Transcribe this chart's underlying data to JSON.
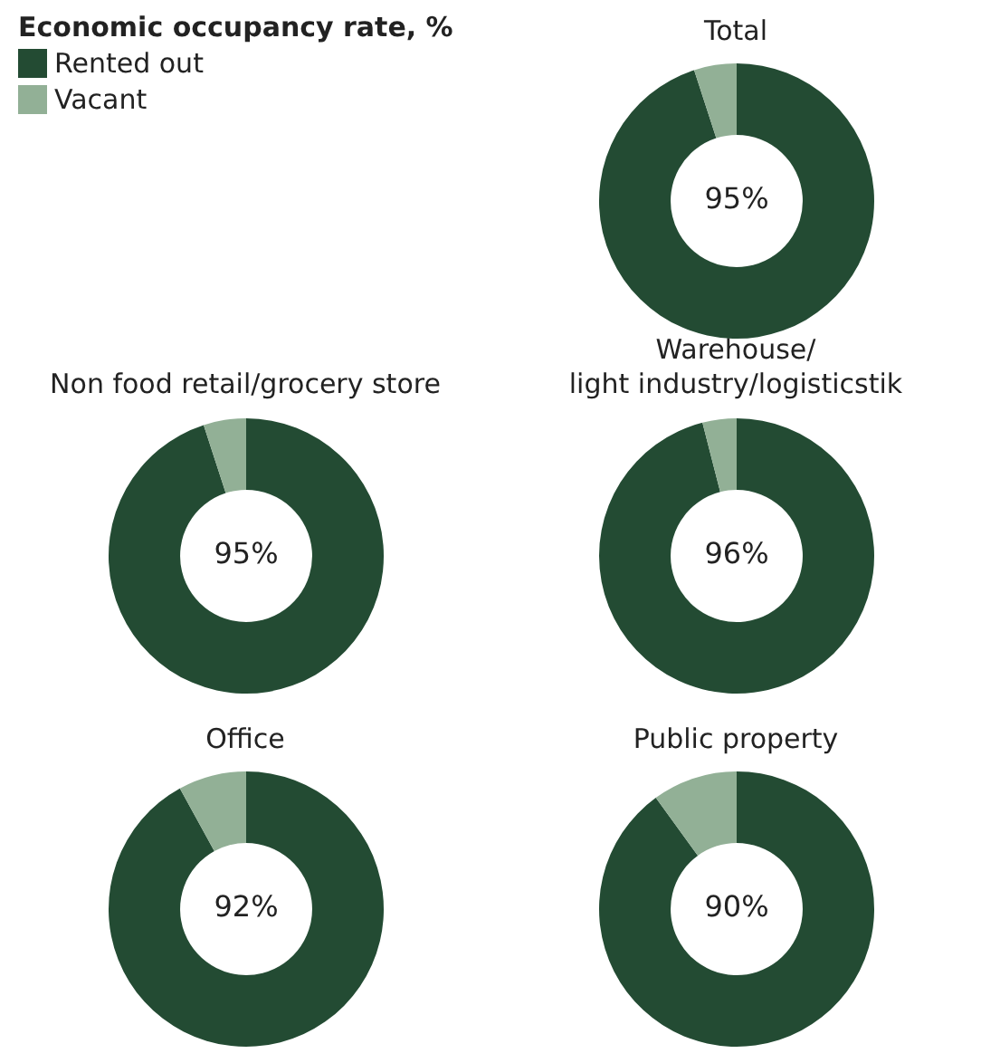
{
  "chart_data": [
    {
      "type": "donut",
      "title": "Total",
      "legend_title": "Economic occupancy rate, %",
      "legend": "left",
      "categories": [
        "Rented out",
        "Vacant"
      ],
      "values": [
        95,
        5
      ],
      "colors": [
        "#234b33",
        "#92b096"
      ],
      "annotations": [
        "95%"
      ]
    },
    {
      "type": "donut",
      "title": "Non food retail/grocery store",
      "categories": [
        null,
        null
      ],
      "values": [
        95,
        5
      ],
      "colors": [
        "#234b33",
        "#92b096"
      ],
      "annotations": [
        "95%"
      ]
    },
    {
      "type": "donut",
      "title": "Warehouse/\nlight industry/logisticstik",
      "categories": [
        null,
        null
      ],
      "values": [
        96,
        4
      ],
      "colors": [
        "#234b33",
        "#92b096"
      ],
      "annotations": [
        "96%"
      ]
    },
    {
      "type": "donut",
      "title": "Office",
      "categories": [
        null,
        null
      ],
      "values": [
        92,
        8
      ],
      "colors": [
        "#234b33",
        "#92b096"
      ],
      "annotations": [
        "92%"
      ]
    },
    {
      "type": "donut",
      "title": "Public property",
      "categories": [
        null,
        null
      ],
      "values": [
        90,
        10
      ],
      "colors": [
        "#234b33",
        "#92b096"
      ],
      "annotations": [
        "90%"
      ]
    }
  ]
}
